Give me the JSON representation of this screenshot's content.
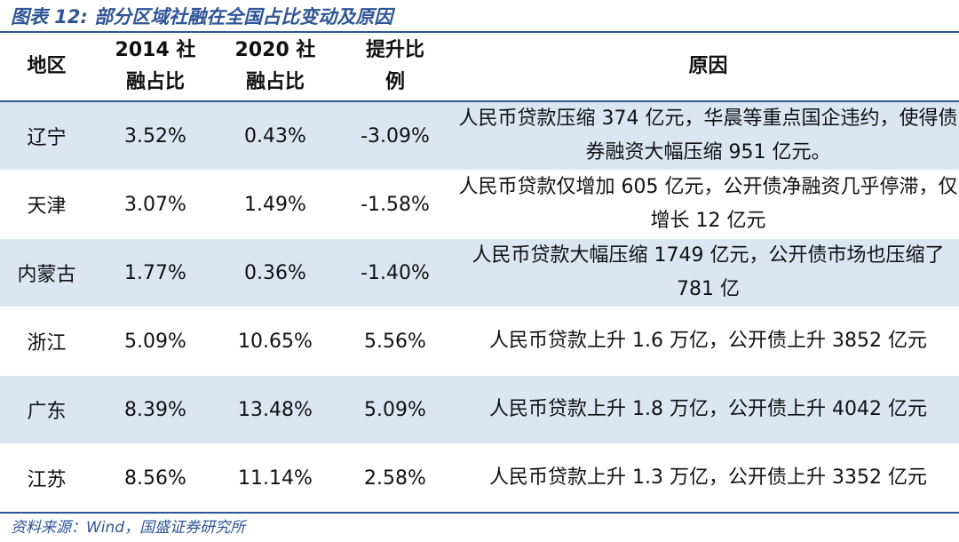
{
  "title": "图表 12:  部分区域社融在全国占比变动及原因",
  "columns": {
    "region": "地区",
    "share_2014": "2014 社\n融占比",
    "share_2020": "2020 社\n融占比",
    "change": "提升比\n例",
    "reason": "原因"
  },
  "rows": [
    {
      "region": "辽宁",
      "share_2014": "3.52%",
      "share_2020": "0.43%",
      "change": "-3.09%",
      "reason": "人民币贷款压缩 374 亿元，华晨等重点国企违约，使得债券融资大幅压缩 951 亿元。"
    },
    {
      "region": "天津",
      "share_2014": "3.07%",
      "share_2020": "1.49%",
      "change": "-1.58%",
      "reason": "人民币贷款仅增加 605 亿元，公开债净融资几乎停滞，仅增长 12 亿元"
    },
    {
      "region": "内蒙古",
      "share_2014": "1.77%",
      "share_2020": "0.36%",
      "change": "-1.40%",
      "reason": "人民币贷款大幅压缩 1749 亿元，公开债市场也压缩了 781 亿"
    },
    {
      "region": "浙江",
      "share_2014": "5.09%",
      "share_2020": "10.65%",
      "change": "5.56%",
      "reason": "人民币贷款上升 1.6 万亿，公开债上升 3852 亿元"
    },
    {
      "region": "广东",
      "share_2014": "8.39%",
      "share_2020": "13.48%",
      "change": "5.09%",
      "reason": "人民币贷款上升 1.8 万亿，公开债上升 4042 亿元"
    },
    {
      "region": "江苏",
      "share_2014": "8.56%",
      "share_2020": "11.14%",
      "change": "2.58%",
      "reason": "人民币贷款上升 1.3 万亿，公开债上升 3352 亿元"
    }
  ],
  "source": "资料来源：Wind，国盛证券研究所",
  "colors": {
    "accent": "#2f5597",
    "stripe": "#dce6f2"
  }
}
